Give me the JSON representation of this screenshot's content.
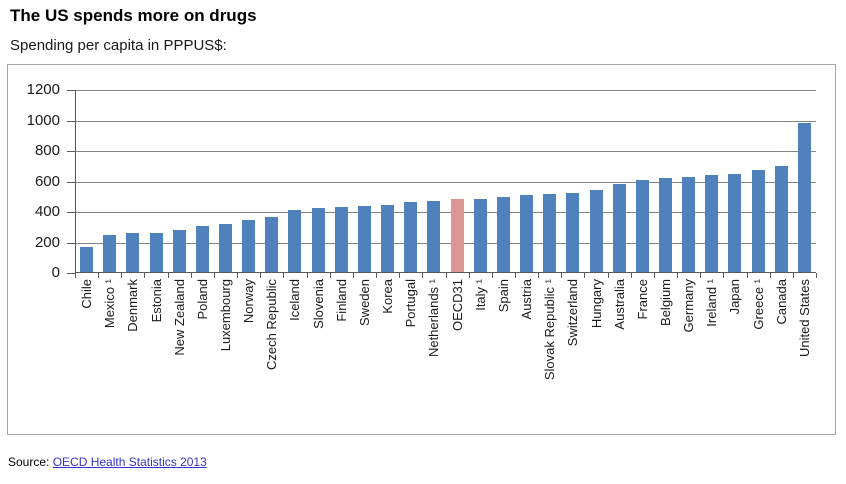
{
  "header": {
    "title": "The US spends more on drugs",
    "subtitle": "Spending per capita in PPPUS$:"
  },
  "source": {
    "label": "Source:",
    "link_text": "OECD Health Statistics 2013"
  },
  "colors": {
    "bar": "#4f81bd",
    "highlight": "#d99694",
    "gridline": "#848484",
    "axis": "#595959",
    "frame_border": "#a6a6a6",
    "link": "#3333cc"
  },
  "chart_data": {
    "type": "bar",
    "title": "The US spends more on drugs",
    "subtitle": "Spending per capita in PPPUS$:",
    "xlabel": "",
    "ylabel": "",
    "ylim": [
      0,
      1200
    ],
    "y_ticks": [
      0,
      200,
      400,
      600,
      800,
      1000,
      1200
    ],
    "grid": true,
    "x_label_rotation": -90,
    "highlight_category": "OECD31",
    "categories": [
      "Chile",
      "Mexico ¹",
      "Denmark",
      "Estonia",
      "New Zealand",
      "Poland",
      "Luxembourg",
      "Norway",
      "Czech Republic",
      "Iceland",
      "Slovenia",
      "Finland",
      "Sweden",
      "Korea",
      "Portugal",
      "Netherlands ¹",
      "OECD31",
      "Italy ¹",
      "Spain",
      "Austria",
      "Slovak Republic ¹",
      "Switzerland",
      "Hungary",
      "Australia",
      "France",
      "Belgium",
      "Germany",
      "Ireland ¹",
      "Japan",
      "Greece ¹",
      "Canada",
      "United States"
    ],
    "values": [
      171,
      249,
      260,
      265,
      281,
      306,
      321,
      347,
      368,
      415,
      428,
      430,
      437,
      445,
      464,
      475,
      483,
      487,
      498,
      511,
      519,
      525,
      541,
      584,
      608,
      621,
      632,
      645,
      648,
      673,
      701,
      985
    ]
  }
}
